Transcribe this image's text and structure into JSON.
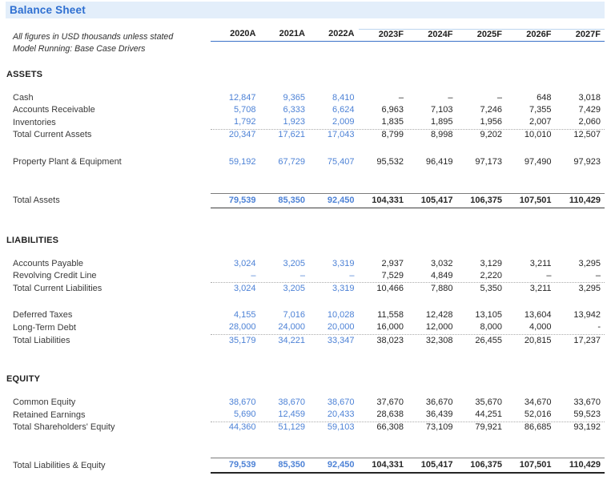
{
  "title": "Balance Sheet",
  "notes": {
    "line1": "All figures in USD thousands unless stated",
    "line2": "Model Running: Base Case Drivers"
  },
  "columns": [
    "2020A",
    "2021A",
    "2022A",
    "2023F",
    "2024F",
    "2025F",
    "2026F",
    "2027F"
  ],
  "historical_count": 3,
  "colors": {
    "accent_blue": "#2e6fd1",
    "title_band_bg": "#e3eefa",
    "historical_value_blue": "#4d82d6",
    "header_underline_blue": "#3a72c8",
    "forecast_topline_blue": "#bcd5ef",
    "body_text": "#3a3a3a"
  },
  "sections": [
    {
      "heading": "ASSETS",
      "groups": [
        {
          "rows": [
            {
              "label": "Cash",
              "style": "data",
              "values": [
                "12,847",
                "9,365",
                "8,410",
                "–",
                "–",
                "–",
                "648",
                "3,018"
              ]
            },
            {
              "label": "Accounts Receivable",
              "style": "data",
              "values": [
                "5,708",
                "6,333",
                "6,624",
                "6,963",
                "7,103",
                "7,246",
                "7,355",
                "7,429"
              ]
            },
            {
              "label": "Inventories",
              "style": "data-dotted",
              "values": [
                "1,792",
                "1,923",
                "2,009",
                "1,835",
                "1,895",
                "1,956",
                "2,007",
                "2,060"
              ]
            },
            {
              "label": "Total Current Assets",
              "style": "data",
              "values": [
                "20,347",
                "17,621",
                "17,043",
                "8,799",
                "8,998",
                "9,202",
                "10,010",
                "12,507"
              ]
            }
          ]
        },
        {
          "rows": [
            {
              "label": "Property Plant & Equipment",
              "style": "data",
              "values": [
                "59,192",
                "67,729",
                "75,407",
                "95,532",
                "96,419",
                "97,173",
                "97,490",
                "97,923"
              ]
            }
          ]
        },
        {
          "rows": [
            {
              "label": "Total Assets",
              "style": "grand",
              "values": [
                "79,539",
                "85,350",
                "92,450",
                "104,331",
                "105,417",
                "106,375",
                "107,501",
                "110,429"
              ]
            }
          ]
        }
      ]
    },
    {
      "heading": "LIABILITIES",
      "groups": [
        {
          "rows": [
            {
              "label": "Accounts Payable",
              "style": "data",
              "values": [
                "3,024",
                "3,205",
                "3,319",
                "2,937",
                "3,032",
                "3,129",
                "3,211",
                "3,295"
              ]
            },
            {
              "label": "Revolving Credit Line",
              "style": "data-dotted",
              "values": [
                "–",
                "–",
                "–",
                "7,529",
                "4,849",
                "2,220",
                "–",
                "–"
              ]
            },
            {
              "label": "Total Current Liabilities",
              "style": "data",
              "values": [
                "3,024",
                "3,205",
                "3,319",
                "10,466",
                "7,880",
                "5,350",
                "3,211",
                "3,295"
              ]
            }
          ]
        },
        {
          "rows": [
            {
              "label": "Deferred Taxes",
              "style": "data",
              "values": [
                "4,155",
                "7,016",
                "10,028",
                "11,558",
                "12,428",
                "13,105",
                "13,604",
                "13,942"
              ]
            },
            {
              "label": "Long-Term Debt",
              "style": "data-dotted",
              "values": [
                "28,000",
                "24,000",
                "20,000",
                "16,000",
                "12,000",
                "8,000",
                "4,000",
                "-"
              ]
            },
            {
              "label": "Total Liabilities",
              "style": "data",
              "values": [
                "35,179",
                "34,221",
                "33,347",
                "38,023",
                "32,308",
                "26,455",
                "20,815",
                "17,237"
              ]
            }
          ]
        }
      ]
    },
    {
      "heading": "EQUITY",
      "groups": [
        {
          "rows": [
            {
              "label": "Common Equity",
              "style": "data",
              "values": [
                "38,670",
                "38,670",
                "38,670",
                "37,670",
                "36,670",
                "35,670",
                "34,670",
                "33,670"
              ]
            },
            {
              "label": "Retained Earnings",
              "style": "data-dotted",
              "values": [
                "5,690",
                "12,459",
                "20,433",
                "28,638",
                "36,439",
                "44,251",
                "52,016",
                "59,523"
              ]
            },
            {
              "label": "Total Shareholders' Equity",
              "style": "data",
              "values": [
                "44,360",
                "51,129",
                "59,103",
                "66,308",
                "73,109",
                "79,921",
                "86,685",
                "93,192"
              ]
            }
          ]
        },
        {
          "rows": [
            {
              "label": "Total Liabilities & Equity",
              "style": "grand-final",
              "values": [
                "79,539",
                "85,350",
                "92,450",
                "104,331",
                "105,417",
                "106,375",
                "107,501",
                "110,429"
              ]
            }
          ]
        }
      ]
    }
  ]
}
